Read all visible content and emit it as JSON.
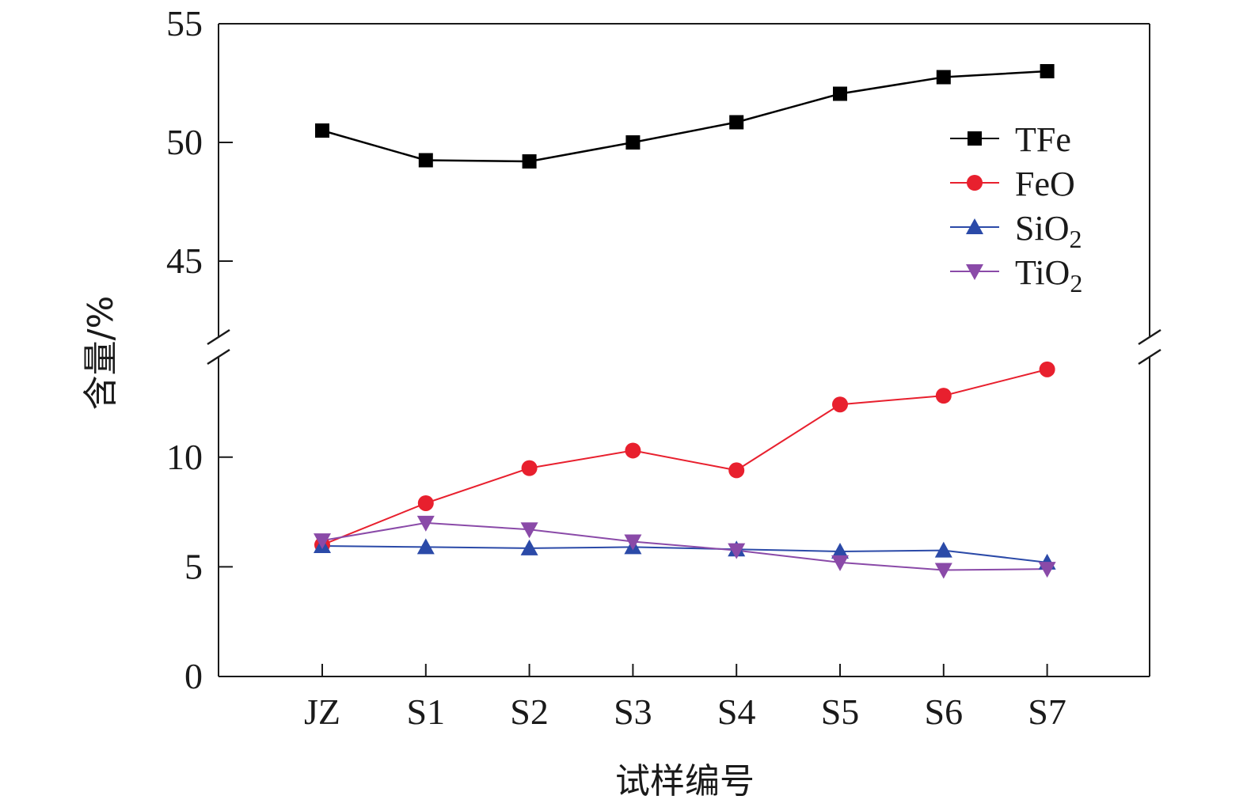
{
  "chart_data": {
    "type": "line",
    "title": "",
    "xlabel": "试样编号",
    "ylabel": "含量/%",
    "categories": [
      "JZ",
      "S1",
      "S2",
      "S3",
      "S4",
      "S5",
      "S6",
      "S7"
    ],
    "y_axis_break": true,
    "ylim_lower": [
      0,
      14.5
    ],
    "ylim_upper": [
      42,
      55
    ],
    "yticks_lower": [
      "0",
      "5",
      "10"
    ],
    "yticks_upper": [
      "45",
      "50",
      "55"
    ],
    "legend_position": "top-right",
    "grid": false,
    "series": [
      {
        "name": "TFe",
        "color": "#000000",
        "marker": "square",
        "values": [
          50.5,
          49.25,
          49.2,
          50.0,
          50.85,
          52.05,
          52.75,
          53.0
        ]
      },
      {
        "name": "FeO",
        "color": "#e8202e",
        "marker": "circle",
        "values": [
          6.0,
          7.9,
          9.5,
          10.3,
          9.4,
          12.4,
          12.8,
          14.0
        ]
      },
      {
        "name": "SiO2",
        "name_base": "SiO",
        "name_sub": "2",
        "color": "#2b4aa8",
        "marker": "triangle-up",
        "values": [
          5.95,
          5.9,
          5.85,
          5.9,
          5.8,
          5.7,
          5.75,
          5.2
        ]
      },
      {
        "name": "TiO2",
        "name_base": "TiO",
        "name_sub": "2",
        "color": "#8a4aa8",
        "marker": "triangle-down",
        "values": [
          6.2,
          7.0,
          6.7,
          6.15,
          5.75,
          5.2,
          4.85,
          4.9
        ]
      }
    ]
  }
}
